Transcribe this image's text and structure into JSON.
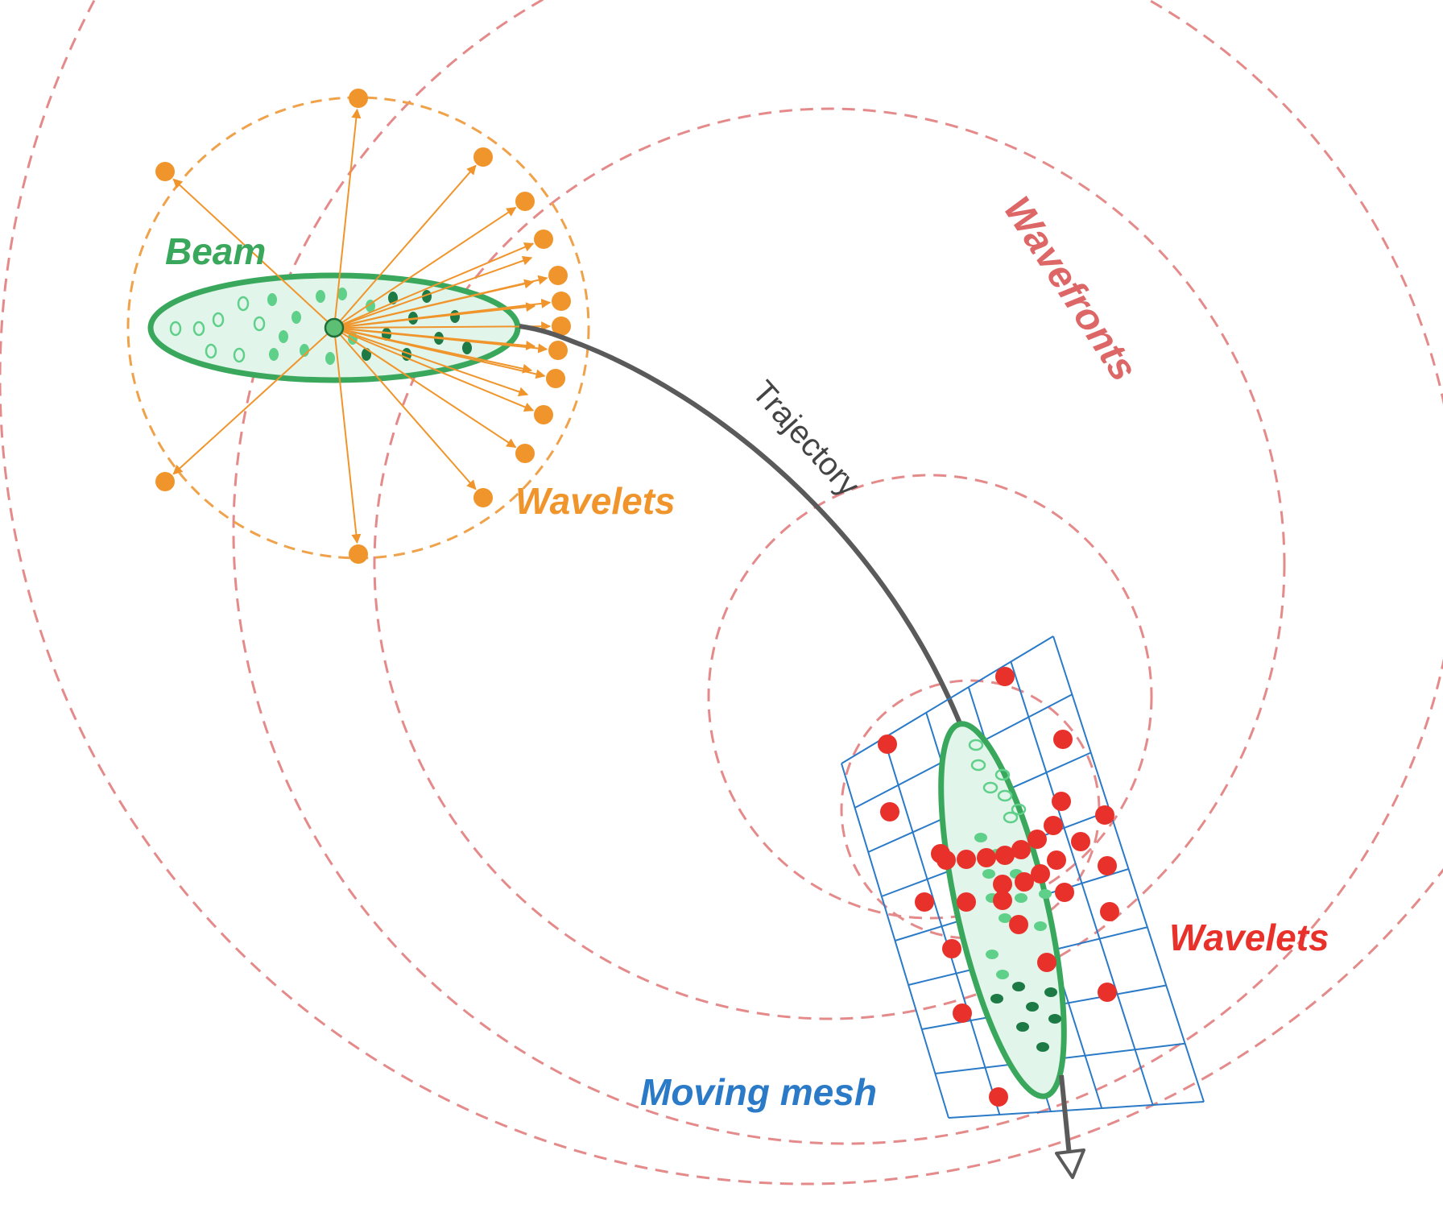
{
  "labels": {
    "beam": "Beam",
    "wavelets_emitted": "Wavelets",
    "wavefronts": "Wavefronts",
    "trajectory": "Trajectory",
    "wavelets_received": "Wavelets",
    "moving_mesh": "Moving mesh"
  },
  "colors": {
    "beam": "#3aa85c",
    "beam_fill": "#e2f5ea",
    "particle_light": "#5fd08a",
    "particle_dark": "#1e7a45",
    "emitted_wavelets": "#f0952b",
    "received_wavelets": "#e8312a",
    "wavefronts": "#e58a8a",
    "mesh": "#2a7ac8",
    "trajectory": "#555555"
  },
  "icons": {
    "trajectory_end": "hollow-arrowhead"
  }
}
